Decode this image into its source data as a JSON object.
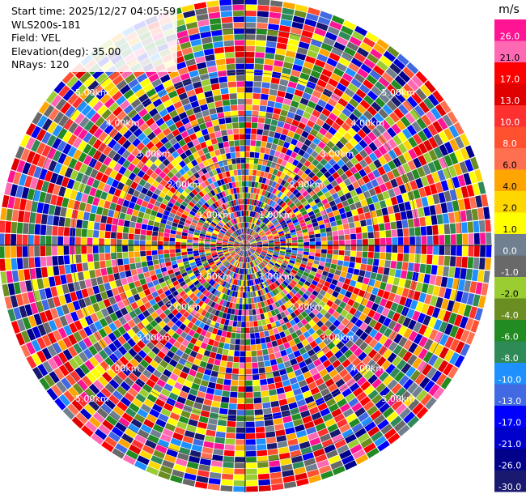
{
  "info": {
    "start_time": "Start time: 2025/12/27 04:05:59",
    "instrument": "WLS200s-181",
    "field": "Field: VEL",
    "elevation": "Elevation(deg): 35.00",
    "nrays": "NRays: 120"
  },
  "chart_data": {
    "type": "heatmap",
    "projection": "polar",
    "field": "VEL",
    "n_rays": 120,
    "range_rings": [
      {
        "label": "1.00km"
      },
      {
        "label": "2.00km"
      },
      {
        "label": "3.00km"
      },
      {
        "label": "4.00km"
      },
      {
        "label": "5.00km"
      }
    ],
    "range_rings_km": [
      1,
      2,
      3,
      4,
      5
    ],
    "max_range_km": 5.7,
    "colorbar": {
      "unit": "m/s",
      "ticks": [
        "26.0",
        "21.0",
        "17.0",
        "13.0",
        "10.0",
        "8.0",
        "6.0",
        "4.0",
        "2.0",
        "1.0",
        "0.0",
        "-1.0",
        "-2.0",
        "-4.0",
        "-6.0",
        "-8.0",
        "-10.0",
        "-13.0",
        "-17.0",
        "-21.0",
        "-26.0",
        "-30.0"
      ],
      "colors": [
        "#ff1493",
        "#ff69b4",
        "#ff0000",
        "#e00000",
        "#ff3030",
        "#ff5030",
        "#ff7050",
        "#ffa500",
        "#ffd700",
        "#ffff00",
        "#708090",
        "#696969",
        "#9acd32",
        "#6b8e23",
        "#228b22",
        "#2e8b57",
        "#1e90ff",
        "#4169e1",
        "#0000ff",
        "#0000cd",
        "#00008b",
        "#191970"
      ]
    }
  }
}
